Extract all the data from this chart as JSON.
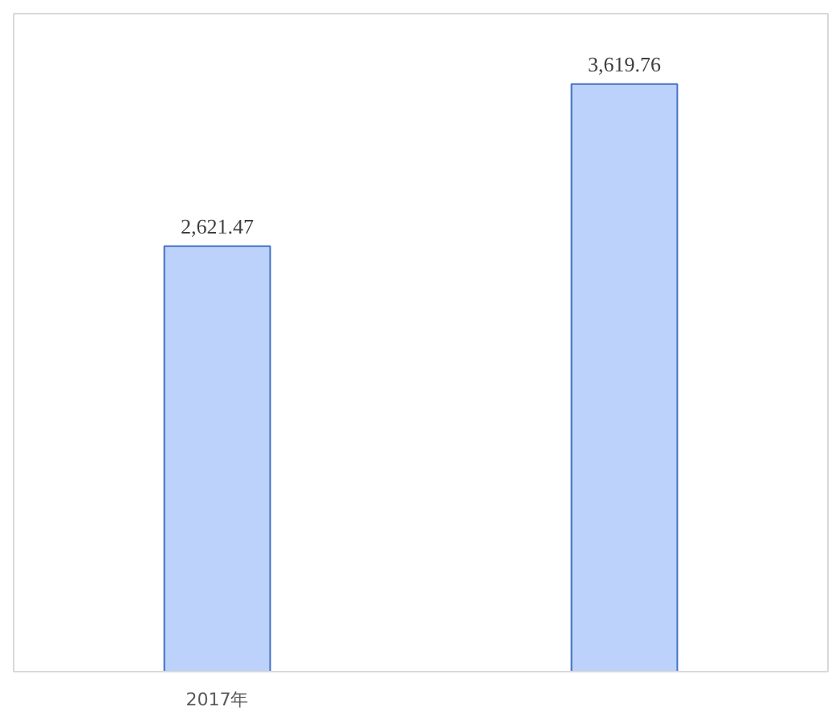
{
  "chart_data": {
    "type": "bar",
    "categories": [
      "2017年",
      null
    ],
    "values": [
      2621.47,
      3619.76
    ],
    "value_labels": [
      "2,621.47",
      "3,619.76"
    ],
    "color": "#bcd2fa"
  }
}
